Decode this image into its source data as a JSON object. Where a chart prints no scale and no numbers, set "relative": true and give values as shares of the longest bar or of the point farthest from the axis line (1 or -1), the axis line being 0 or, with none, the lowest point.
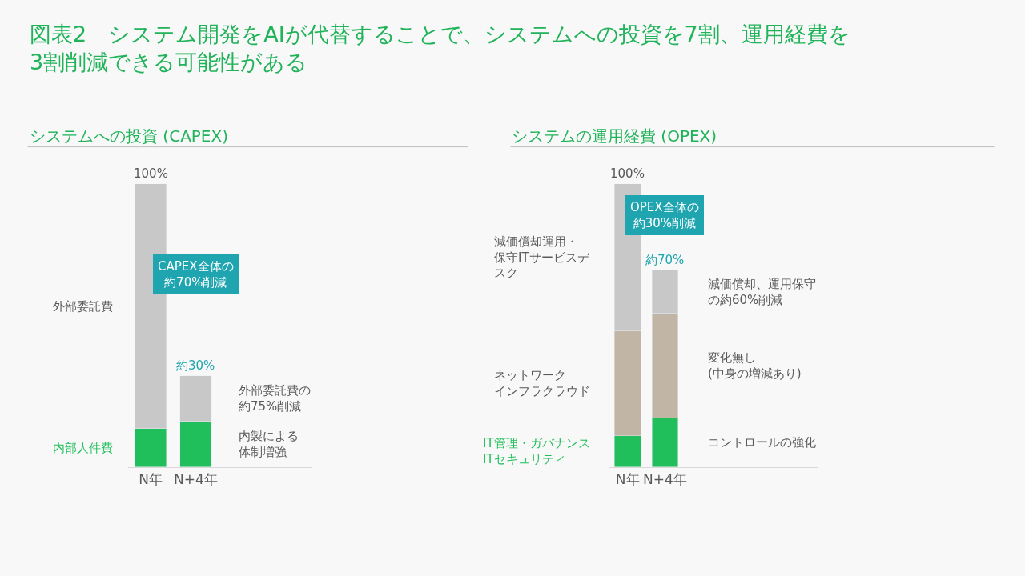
{
  "chart_data": [
    {
      "type": "bar",
      "title": "図表2　システム開発をAIが代替することで、システムへの投資を7割、運用経費を\n3割削減できる可能性がある",
      "subtitle": "システムへの投資 (CAPEX)",
      "categories": [
        "N年",
        "N+4年"
      ],
      "stacked": true,
      "relative": true,
      "legend": false,
      "grid": false,
      "tick_labels": "x",
      "series": [
        {
          "name": "内部人件費",
          "color": "#21bf5b",
          "values": [
            0.136,
            0.161
          ]
        },
        {
          "name": "外部委託費",
          "color": "#c8c8c8",
          "values": [
            0.864,
            0.161
          ]
        }
      ],
      "totals": [
        "100%",
        "約30%"
      ],
      "annotations": [
        "CAPEX全体の約70%削減",
        "外部委託費の約75%削減",
        "内製による体制増強"
      ]
    },
    {
      "type": "bar",
      "subtitle": "システムの運用経費 (OPEX)",
      "categories": [
        "N年",
        "N+4年"
      ],
      "stacked": true,
      "relative": true,
      "legend": false,
      "grid": false,
      "tick_labels": "x",
      "series": [
        {
          "name": "IT管理・ガバナンスITセキュリティ",
          "color": "#21bf5b",
          "values": [
            0.11,
            0.172
          ]
        },
        {
          "name": "ネットワークインフラクラウド",
          "color": "#c1b5a5",
          "values": [
            0.37,
            0.37
          ]
        },
        {
          "name": "減価償却運用・保守ITサービスデスク",
          "color": "#c8c8c8",
          "values": [
            0.52,
            0.153
          ]
        }
      ],
      "totals": [
        "100%",
        "約70%"
      ],
      "annotations": [
        "OPEX全体の約30%削減",
        "減価償却、運用保守の約60%削減",
        "変化無し(中身の増減あり)",
        "コントロールの強化"
      ]
    }
  ]
}
